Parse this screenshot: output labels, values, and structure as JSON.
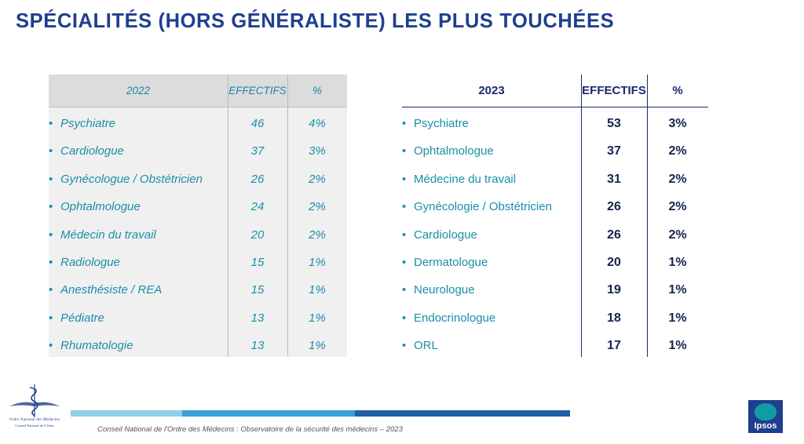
{
  "title": "SPÉCIALITÉS (HORS GÉNÉRALISTE) LES PLUS TOUCHÉES",
  "table_2022": {
    "headers": {
      "year": "2022",
      "effectifs": "EFFECTIFS",
      "pct": "%"
    },
    "rows": [
      {
        "label": "Psychiatre",
        "effectifs": "46",
        "pct": "4%"
      },
      {
        "label": "Cardiologue",
        "effectifs": "37",
        "pct": "3%"
      },
      {
        "label": "Gynécologue / Obstétricien",
        "effectifs": "26",
        "pct": "2%"
      },
      {
        "label": "Ophtalmologue",
        "effectifs": "24",
        "pct": "2%"
      },
      {
        "label": "Médecin du travail",
        "effectifs": "20",
        "pct": "2%"
      },
      {
        "label": "Radiologue",
        "effectifs": "15",
        "pct": "1%"
      },
      {
        "label": "Anesthésiste / REA",
        "effectifs": "15",
        "pct": "1%"
      },
      {
        "label": "Pédiatre",
        "effectifs": "13",
        "pct": "1%"
      },
      {
        "label": "Rhumatologie",
        "effectifs": "13",
        "pct": "1%"
      }
    ]
  },
  "table_2023": {
    "headers": {
      "year": "2023",
      "effectifs": "EFFECTIFS",
      "pct": "%"
    },
    "rows": [
      {
        "label": "Psychiatre",
        "effectifs": "53",
        "pct": "3%"
      },
      {
        "label": "Ophtalmologue",
        "effectifs": "37",
        "pct": "2%"
      },
      {
        "label": "Médecine du travail",
        "effectifs": "31",
        "pct": "2%"
      },
      {
        "label": "Gynécologie / Obstétricien",
        "effectifs": "26",
        "pct": "2%"
      },
      {
        "label": "Cardiologue",
        "effectifs": "26",
        "pct": "2%"
      },
      {
        "label": "Dermatologue",
        "effectifs": "20",
        "pct": "1%"
      },
      {
        "label": "Neurologue",
        "effectifs": "19",
        "pct": "1%"
      },
      {
        "label": "Endocrinologue",
        "effectifs": "18",
        "pct": "1%"
      },
      {
        "label": "ORL",
        "effectifs": "17",
        "pct": "1%"
      }
    ]
  },
  "bullet": "•",
  "footer": {
    "source": "Conseil National de l'Ordre des Médecins : Observatoire de la sécurité des médecins – 2023",
    "cnom_logo_line1": "Ordre National des Médecins",
    "cnom_logo_line2": "Conseil National de l'Ordre",
    "ipsos_logo": "Ipsos"
  },
  "colors": {
    "title": "#1f3f8f",
    "teal_text": "#1a8ea8",
    "navy_numbers": "#17244f",
    "bar_light": "#8fd0e8",
    "bar_mid": "#3a9fd6",
    "bar_dark": "#1f5fa8"
  },
  "icons": {
    "cnom": "caduceus-logo",
    "ipsos": "ipsos-logo"
  }
}
